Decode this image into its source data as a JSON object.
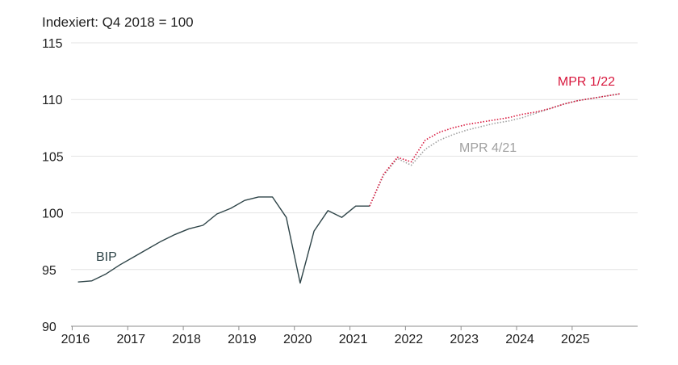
{
  "chart_data": {
    "type": "line",
    "subtitle": "Indexiert: Q4 2018 = 100",
    "ylim": [
      90,
      115
    ],
    "y_ticks": [
      90,
      95,
      100,
      105,
      110,
      115
    ],
    "x_ticks": [
      "2016",
      "2017",
      "2018",
      "2019",
      "2020",
      "2021",
      "2022",
      "2023",
      "2024",
      "2025"
    ],
    "xlim": [
      2016.0,
      2026.2
    ],
    "grid": "horizontal",
    "series": [
      {
        "name": "BIP",
        "color": "#2e4448",
        "style": "solid",
        "x": [
          2016.125,
          2016.375,
          2016.625,
          2016.875,
          2017.125,
          2017.375,
          2017.625,
          2017.875,
          2018.125,
          2018.375,
          2018.625,
          2018.875,
          2019.125,
          2019.375,
          2019.625,
          2019.875,
          2020.125,
          2020.375,
          2020.625,
          2020.875,
          2021.125,
          2021.375
        ],
        "values": [
          93.9,
          94.0,
          94.6,
          95.4,
          96.1,
          96.8,
          97.5,
          98.1,
          98.6,
          98.9,
          99.9,
          100.4,
          101.1,
          101.4,
          101.4,
          99.6,
          93.8,
          98.4,
          100.2,
          99.6,
          100.6,
          100.6
        ]
      },
      {
        "name": "MPR 4/21",
        "color": "#a0a0a0",
        "style": "dotted",
        "x": [
          2021.375,
          2021.625,
          2021.875,
          2022.125,
          2022.375,
          2022.625,
          2022.875,
          2023.125,
          2023.375,
          2023.625,
          2023.875,
          2024.125,
          2024.375,
          2024.625,
          2024.875,
          2025.125,
          2025.375,
          2025.625,
          2025.875
        ],
        "values": [
          100.6,
          103.3,
          104.8,
          104.2,
          105.6,
          106.4,
          106.9,
          107.3,
          107.6,
          107.9,
          108.1,
          108.4,
          108.8,
          109.2,
          109.6,
          109.9,
          110.1,
          110.3,
          110.5
        ]
      },
      {
        "name": "MPR 1/22",
        "color": "#d8173d",
        "style": "dotted",
        "x": [
          2021.375,
          2021.625,
          2021.875,
          2022.125,
          2022.375,
          2022.625,
          2022.875,
          2023.125,
          2023.375,
          2023.625,
          2023.875,
          2024.125,
          2024.375,
          2024.625,
          2024.875,
          2025.125,
          2025.375,
          2025.625,
          2025.875
        ],
        "values": [
          100.6,
          103.4,
          104.9,
          104.5,
          106.4,
          107.1,
          107.5,
          107.8,
          108.0,
          108.2,
          108.4,
          108.7,
          108.9,
          109.2,
          109.6,
          109.9,
          110.1,
          110.3,
          110.5
        ]
      }
    ]
  }
}
